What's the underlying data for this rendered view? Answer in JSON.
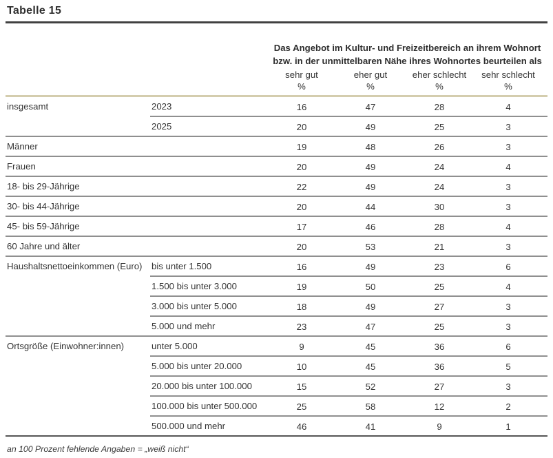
{
  "title": "Tabelle 15",
  "header": {
    "question_line1": "Das Angebot im Kultur- und Freizeitbereich an ihrem Wohnort",
    "question_line2": "bzw. in der unmittelbaren Nähe ihres Wohnortes beurteilen als",
    "columns": [
      {
        "label": "sehr gut",
        "unit": "%"
      },
      {
        "label": "eher gut",
        "unit": "%"
      },
      {
        "label": "eher schlecht",
        "unit": "%"
      },
      {
        "label": "sehr schlecht",
        "unit": "%"
      }
    ]
  },
  "table": {
    "rows": [
      {
        "group": "insgesamt",
        "sub": "2023",
        "values": [
          16,
          47,
          28,
          4
        ],
        "divider": "partial"
      },
      {
        "group": "",
        "sub": "2025",
        "values": [
          20,
          49,
          25,
          3
        ],
        "divider": "full"
      },
      {
        "group": "Männer",
        "sub": "",
        "values": [
          19,
          48,
          26,
          3
        ],
        "divider": "full"
      },
      {
        "group": "Frauen",
        "sub": "",
        "values": [
          20,
          49,
          24,
          4
        ],
        "divider": "full"
      },
      {
        "group": "18- bis 29-Jährige",
        "sub": "",
        "values": [
          22,
          49,
          24,
          3
        ],
        "divider": "full"
      },
      {
        "group": "30- bis 44-Jährige",
        "sub": "",
        "values": [
          20,
          44,
          30,
          3
        ],
        "divider": "full"
      },
      {
        "group": "45- bis 59-Jährige",
        "sub": "",
        "values": [
          17,
          46,
          28,
          4
        ],
        "divider": "full"
      },
      {
        "group": "60 Jahre und älter",
        "sub": "",
        "values": [
          20,
          53,
          21,
          3
        ],
        "divider": "full"
      },
      {
        "group": "Haushaltsnettoeinkommen (Euro)",
        "sub": "bis unter 1.500",
        "values": [
          16,
          49,
          23,
          6
        ],
        "divider": "partial"
      },
      {
        "group": "",
        "sub": "1.500 bis unter 3.000",
        "values": [
          19,
          50,
          25,
          4
        ],
        "divider": "partial"
      },
      {
        "group": "",
        "sub": "3.000 bis unter 5.000",
        "values": [
          18,
          49,
          27,
          3
        ],
        "divider": "partial"
      },
      {
        "group": "",
        "sub": "5.000 und mehr",
        "values": [
          23,
          47,
          25,
          3
        ],
        "divider": "full"
      },
      {
        "group": "Ortsgröße (Einwohner:innen)",
        "sub": "unter 5.000",
        "values": [
          9,
          45,
          36,
          6
        ],
        "divider": "partial"
      },
      {
        "group": "",
        "sub": "5.000 bis unter 20.000",
        "values": [
          10,
          45,
          36,
          5
        ],
        "divider": "partial"
      },
      {
        "group": "",
        "sub": "20.000 bis unter 100.000",
        "values": [
          15,
          52,
          27,
          3
        ],
        "divider": "partial"
      },
      {
        "group": "",
        "sub": "100.000 bis unter 500.000",
        "values": [
          25,
          58,
          12,
          2
        ],
        "divider": "partial"
      },
      {
        "group": "",
        "sub": "500.000 und mehr",
        "values": [
          46,
          41,
          9,
          1
        ],
        "divider": "bottom"
      }
    ]
  },
  "footnote": "an 100 Prozent fehlende Angaben = „weiß nicht“",
  "colors": {
    "accent_line": "#d4cdae",
    "row_divider": "#8f8f8f",
    "title_rule": "#414141",
    "text": "#333333"
  }
}
